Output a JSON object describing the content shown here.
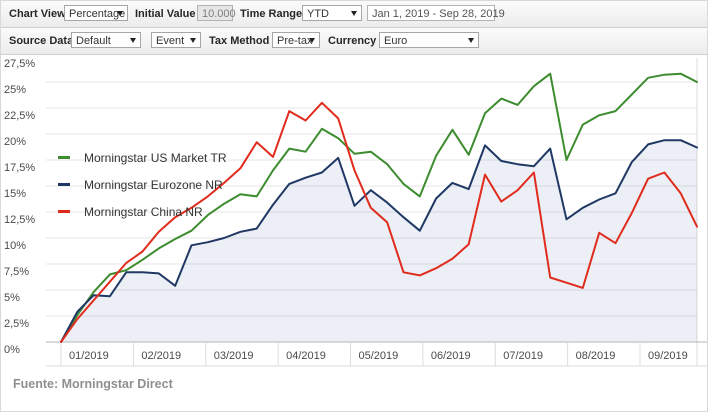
{
  "toolbar": {
    "row1": {
      "chart_view_label": "Chart View",
      "chart_view_value": "Percentage",
      "initial_value_label": "Initial Value",
      "initial_value": "10.000",
      "time_range_label": "Time Range",
      "time_range_value": "YTD",
      "date_range_value": "Jan 1, 2019 - Sep 28, 2019"
    },
    "row2": {
      "source_data_label": "Source Data",
      "source_data_value": "Default",
      "event_value": "Event",
      "tax_method_label": "Tax Method",
      "tax_method_value": "Pre-tax",
      "currency_label": "Currency",
      "currency_value": "Euro"
    }
  },
  "chart_data": {
    "type": "line",
    "title": "",
    "x_frequency": "weekly",
    "x_range": "Jan 1, 2019 - Sep 28, 2019",
    "x_tick_labels": [
      "01/2019",
      "02/2019",
      "03/2019",
      "04/2019",
      "05/2019",
      "06/2019",
      "07/2019",
      "08/2019",
      "09/2019"
    ],
    "y_tick_labels": [
      "0%",
      "2,5%",
      "5%",
      "7,5%",
      "10%",
      "12,5%",
      "15%",
      "17,5%",
      "20%",
      "22,5%",
      "25%",
      "27,5%"
    ],
    "ylim": [
      0,
      27.5
    ],
    "y_step": 2.5,
    "grid": "horizontal",
    "legend_position": "top-left-overlay",
    "series": [
      {
        "name": "Morningstar US Market TR",
        "color": "#3d8c2f",
        "fill": false,
        "values": [
          0,
          2.6,
          4.8,
          6.5,
          6.9,
          7.9,
          9.0,
          9.9,
          10.7,
          12.2,
          13.3,
          14.2,
          14.0,
          16.5,
          18.6,
          18.3,
          20.5,
          19.6,
          18.1,
          18.3,
          17.1,
          15.2,
          14.0,
          17.9,
          20.4,
          18.0,
          22.0,
          23.4,
          22.8,
          24.6,
          25.8,
          17.5,
          20.9,
          21.8,
          22.2,
          23.8,
          25.4,
          25.7,
          25.8,
          25.0
        ]
      },
      {
        "name": "Morningstar Eurozone NR",
        "color": "#1f3864",
        "fill": true,
        "fill_color": "rgba(105,130,175,0.13)",
        "values": [
          0,
          2.9,
          4.5,
          4.4,
          6.7,
          6.7,
          6.6,
          5.4,
          9.3,
          9.6,
          10.0,
          10.6,
          10.9,
          13.2,
          15.2,
          15.8,
          16.3,
          17.7,
          13.1,
          14.6,
          13.4,
          12.0,
          10.7,
          13.8,
          15.3,
          14.7,
          18.9,
          17.4,
          17.1,
          16.9,
          18.6,
          11.8,
          12.9,
          13.7,
          14.3,
          17.3,
          19.0,
          19.4,
          19.4,
          18.7
        ]
      },
      {
        "name": "Morningstar China NR",
        "color": "#e02b1d",
        "fill": false,
        "values": [
          0,
          2.2,
          4.0,
          5.8,
          7.6,
          8.7,
          10.6,
          12.0,
          12.9,
          14.0,
          15.3,
          16.7,
          19.2,
          17.8,
          22.2,
          21.3,
          23.0,
          21.5,
          16.5,
          12.9,
          11.5,
          6.7,
          6.4,
          7.1,
          8.0,
          9.4,
          16.1,
          13.5,
          14.6,
          16.3,
          6.2,
          5.7,
          5.2,
          10.5,
          9.5,
          12.4,
          15.7,
          16.3,
          14.3,
          11.1
        ]
      }
    ]
  },
  "footer": {
    "source_text": "Fuente: Morningstar Direct"
  },
  "colors": {
    "gridline": "#e4e4e4",
    "axis_line": "#b5b5b5",
    "band_line": "#dcdcdc",
    "tick_text": "#4a4a4a"
  }
}
